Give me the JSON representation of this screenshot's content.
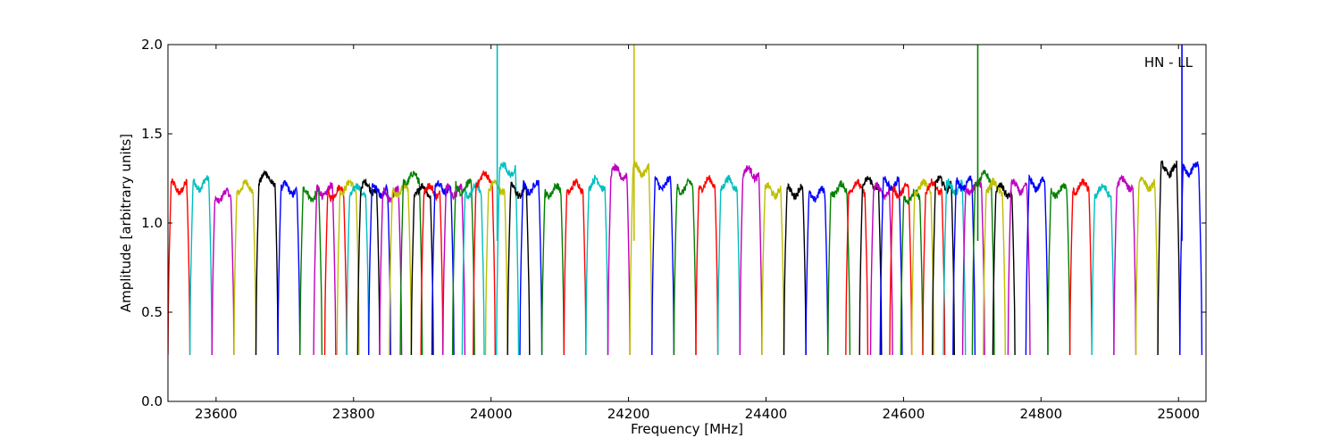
{
  "chart_data": {
    "type": "line",
    "xlabel": "Frequency [MHz]",
    "ylabel": "Amplitude [arbitrary units]",
    "annotation": "HN - LL",
    "xlim": [
      23530,
      25040
    ],
    "ylim": [
      0.0,
      2.0
    ],
    "xticks": [
      23600,
      23800,
      24000,
      24200,
      24400,
      24600,
      24800,
      25000
    ],
    "xtick_labels": [
      "23600",
      "23800",
      "24000",
      "24200",
      "24400",
      "24600",
      "24800",
      "25000"
    ],
    "yticks": [
      0.0,
      0.5,
      1.0,
      1.5,
      2.0
    ],
    "ytick_labels": [
      "0.0",
      "0.5",
      "1.0",
      "1.5",
      "2.0"
    ],
    "grid": false,
    "colors": [
      "#ff0000",
      "#00bfbf",
      "#bf00bf",
      "#bfbf00",
      "#000000",
      "#0000ff",
      "#008000"
    ],
    "channel_width_mhz": 32,
    "channels": [
      {
        "start": 23530,
        "level": 1.2,
        "color": "#ff0000"
      },
      {
        "start": 23562,
        "level": 1.22,
        "color": "#00bfbf"
      },
      {
        "start": 23594,
        "level": 1.15,
        "color": "#bf00bf"
      },
      {
        "start": 23626,
        "level": 1.2,
        "color": "#bfbf00"
      },
      {
        "start": 23658,
        "level": 1.25,
        "color": "#000000"
      },
      {
        "start": 23690,
        "level": 1.19,
        "color": "#0000ff"
      },
      {
        "start": 23722,
        "level": 1.16,
        "color": "#008000"
      },
      {
        "start": 23742,
        "level": 1.18,
        "color": "#bf00bf"
      },
      {
        "start": 23758,
        "level": 1.17,
        "color": "#ff0000"
      },
      {
        "start": 23776,
        "level": 1.2,
        "color": "#bfbf00"
      },
      {
        "start": 23790,
        "level": 1.18,
        "color": "#00bfbf"
      },
      {
        "start": 23806,
        "level": 1.2,
        "color": "#000000"
      },
      {
        "start": 23822,
        "level": 1.18,
        "color": "#0000ff"
      },
      {
        "start": 23838,
        "level": 1.16,
        "color": "#bf00bf"
      },
      {
        "start": 23852,
        "level": 1.18,
        "color": "#bfbf00"
      },
      {
        "start": 23868,
        "level": 1.25,
        "color": "#008000"
      },
      {
        "start": 23884,
        "level": 1.18,
        "color": "#000000"
      },
      {
        "start": 23898,
        "level": 1.18,
        "color": "#ff0000"
      },
      {
        "start": 23914,
        "level": 1.2,
        "color": "#0000ff"
      },
      {
        "start": 23930,
        "level": 1.18,
        "color": "#bf00bf"
      },
      {
        "start": 23944,
        "level": 1.2,
        "color": "#008000"
      },
      {
        "start": 23958,
        "level": 1.18,
        "color": "#00bfbf"
      },
      {
        "start": 23974,
        "level": 1.25,
        "color": "#ff0000"
      },
      {
        "start": 23992,
        "level": 1.2,
        "color": "#bfbf00"
      },
      {
        "start": 24008,
        "level": 1.3,
        "color": "#00bfbf"
      },
      {
        "start": 24024,
        "level": 1.18,
        "color": "#000000"
      },
      {
        "start": 24042,
        "level": 1.2,
        "color": "#0000ff"
      },
      {
        "start": 24074,
        "level": 1.18,
        "color": "#008000"
      },
      {
        "start": 24106,
        "level": 1.2,
        "color": "#ff0000"
      },
      {
        "start": 24138,
        "level": 1.22,
        "color": "#00bfbf"
      },
      {
        "start": 24170,
        "level": 1.28,
        "color": "#bf00bf"
      },
      {
        "start": 24202,
        "level": 1.3,
        "color": "#bfbf00"
      },
      {
        "start": 24234,
        "level": 1.22,
        "color": "#0000ff"
      },
      {
        "start": 24266,
        "level": 1.2,
        "color": "#008000"
      },
      {
        "start": 24298,
        "level": 1.22,
        "color": "#ff0000"
      },
      {
        "start": 24330,
        "level": 1.22,
        "color": "#00bfbf"
      },
      {
        "start": 24362,
        "level": 1.28,
        "color": "#bf00bf"
      },
      {
        "start": 24394,
        "level": 1.18,
        "color": "#bfbf00"
      },
      {
        "start": 24426,
        "level": 1.18,
        "color": "#000000"
      },
      {
        "start": 24458,
        "level": 1.16,
        "color": "#0000ff"
      },
      {
        "start": 24490,
        "level": 1.19,
        "color": "#008000"
      },
      {
        "start": 24516,
        "level": 1.2,
        "color": "#ff0000"
      },
      {
        "start": 24536,
        "level": 1.22,
        "color": "#000000"
      },
      {
        "start": 24552,
        "level": 1.18,
        "color": "#bf00bf"
      },
      {
        "start": 24566,
        "level": 1.22,
        "color": "#0000ff"
      },
      {
        "start": 24580,
        "level": 1.18,
        "color": "#ff0000"
      },
      {
        "start": 24596,
        "level": 1.15,
        "color": "#008000"
      },
      {
        "start": 24612,
        "level": 1.2,
        "color": "#bfbf00"
      },
      {
        "start": 24628,
        "level": 1.2,
        "color": "#ff0000"
      },
      {
        "start": 24642,
        "level": 1.22,
        "color": "#000000"
      },
      {
        "start": 24658,
        "level": 1.2,
        "color": "#00bfbf"
      },
      {
        "start": 24672,
        "level": 1.22,
        "color": "#0000ff"
      },
      {
        "start": 24686,
        "level": 1.2,
        "color": "#bf00bf"
      },
      {
        "start": 24700,
        "level": 1.25,
        "color": "#008000"
      },
      {
        "start": 24716,
        "level": 1.2,
        "color": "#bfbf00"
      },
      {
        "start": 24730,
        "level": 1.18,
        "color": "#000000"
      },
      {
        "start": 24752,
        "level": 1.2,
        "color": "#bf00bf"
      },
      {
        "start": 24778,
        "level": 1.22,
        "color": "#0000ff"
      },
      {
        "start": 24810,
        "level": 1.18,
        "color": "#008000"
      },
      {
        "start": 24842,
        "level": 1.2,
        "color": "#ff0000"
      },
      {
        "start": 24874,
        "level": 1.18,
        "color": "#00bfbf"
      },
      {
        "start": 24906,
        "level": 1.22,
        "color": "#bf00bf"
      },
      {
        "start": 24938,
        "level": 1.22,
        "color": "#bfbf00"
      },
      {
        "start": 24970,
        "level": 1.3,
        "color": "#000000"
      },
      {
        "start": 25002,
        "level": 1.3,
        "color": "#0000ff"
      }
    ],
    "spikes": [
      {
        "x": 24009,
        "y": 2.0,
        "color": "#00bfbf"
      },
      {
        "x": 24208,
        "y": 2.0,
        "color": "#bfbf00"
      },
      {
        "x": 24708,
        "y": 2.0,
        "color": "#008000"
      },
      {
        "x": 25005,
        "y": 2.0,
        "color": "#0000ff"
      }
    ]
  }
}
